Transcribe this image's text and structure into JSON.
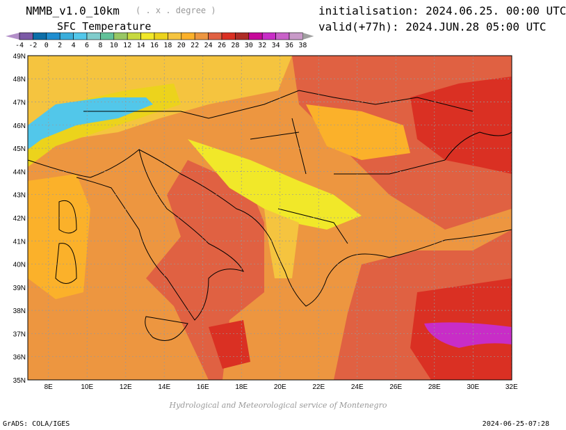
{
  "header": {
    "title": "NMMB_v1.0_10km",
    "units": "( . x . degree )",
    "variable": "SFC Temperature",
    "initialisation": "initialisation: 2024.06.25. 00:00 UTC",
    "valid": "valid(+77h): 2024.JUN.28 05:00 UTC"
  },
  "colorbar": {
    "labels": [
      "-4",
      "-2",
      "0",
      "2",
      "4",
      "6",
      "8",
      "10",
      "12",
      "14",
      "16",
      "18",
      "20",
      "22",
      "24",
      "26",
      "28",
      "30",
      "32",
      "34",
      "36",
      "38"
    ],
    "colors": [
      "#7b5aa6",
      "#0c6ea8",
      "#1f8ed0",
      "#3aaedb",
      "#52c7ea",
      "#80cccc",
      "#62c29a",
      "#98c764",
      "#c7d93f",
      "#f1e829",
      "#ecd31c",
      "#f5c43f",
      "#fbb12a",
      "#ed9640",
      "#e06142",
      "#da3023",
      "#ae2c26",
      "#c6089a",
      "#c82dc7",
      "#c862c8",
      "#c89ac8"
    ],
    "under_color": "#b38fc9",
    "over_color": "#a0a0a0"
  },
  "map": {
    "lat_labels": [
      "35N",
      "36N",
      "37N",
      "38N",
      "39N",
      "40N",
      "41N",
      "42N",
      "43N",
      "44N",
      "45N",
      "46N",
      "47N",
      "48N",
      "49N"
    ],
    "lon_labels": [
      "8E",
      "10E",
      "12E",
      "14E",
      "16E",
      "18E",
      "20E",
      "22E",
      "24E",
      "26E",
      "28E",
      "30E",
      "32E"
    ]
  },
  "footer": {
    "credit": "Hydrological and Meteorological service of Montenegro",
    "software": "GrADS: COLA/IGES",
    "timestamp": "2024-06-25-07:28"
  }
}
